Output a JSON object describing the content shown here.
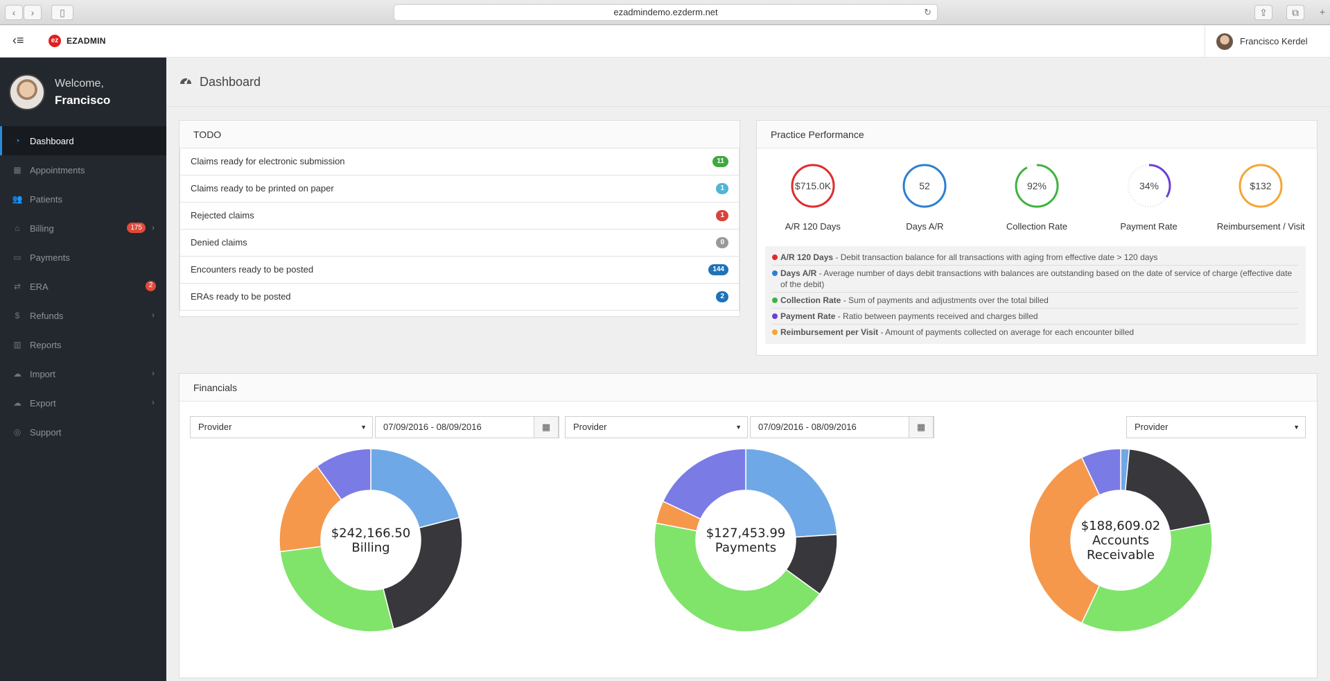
{
  "browser": {
    "url": "ezadmindemo.ezderm.net"
  },
  "header": {
    "logo_text": "EZADMIN",
    "user_name": "Francisco Kerdel"
  },
  "sidebar": {
    "welcome": "Welcome,",
    "user_first_name": "Francisco",
    "items": [
      {
        "label": "Dashboard",
        "icon": "dashboard-icon",
        "active": true
      },
      {
        "label": "Appointments",
        "icon": "calendar-icon"
      },
      {
        "label": "Patients",
        "icon": "users-icon"
      },
      {
        "label": "Billing",
        "icon": "bank-icon",
        "badge": "175",
        "chevron": true
      },
      {
        "label": "Payments",
        "icon": "money-icon"
      },
      {
        "label": "ERA",
        "icon": "exchange-icon",
        "badge": "2"
      },
      {
        "label": "Refunds",
        "icon": "dollar-icon",
        "chevron": true
      },
      {
        "label": "Reports",
        "icon": "bar-chart-icon"
      },
      {
        "label": "Import",
        "icon": "cloud-upload-icon",
        "chevron": true
      },
      {
        "label": "Export",
        "icon": "cloud-download-icon",
        "chevron": true
      },
      {
        "label": "Support",
        "icon": "life-ring-icon"
      }
    ]
  },
  "page": {
    "title": "Dashboard"
  },
  "todo": {
    "title": "TODO",
    "items": [
      {
        "label": "Claims ready for electronic submission",
        "count": "11",
        "color": "#3fa93f"
      },
      {
        "label": "Claims ready to be printed on paper",
        "count": "1",
        "color": "#4fb6d6"
      },
      {
        "label": "Rejected claims",
        "count": "1",
        "color": "#d9443a"
      },
      {
        "label": "Denied claims",
        "count": "0",
        "color": "#999999"
      },
      {
        "label": "Encounters ready to be posted",
        "count": "144",
        "color": "#1f73b7"
      },
      {
        "label": "ERAs ready to be posted",
        "count": "2",
        "color": "#1f73b7"
      }
    ]
  },
  "performance": {
    "title": "Practice Performance",
    "metrics": [
      {
        "value": "$715.0K",
        "label": "A/R 120 Days",
        "color": "#e02b2b",
        "fill": 1.0
      },
      {
        "value": "52",
        "label": "Days A/R",
        "color": "#2b80d0",
        "fill": 1.0
      },
      {
        "value": "92%",
        "label": "Collection Rate",
        "color": "#3db33d",
        "fill": 0.92
      },
      {
        "value": "34%",
        "label": "Payment Rate",
        "color": "#6a3fd6",
        "fill": 0.34
      },
      {
        "value": "$132",
        "label": "Reimbursement / Visit",
        "color": "#f5a534",
        "fill": 1.0
      }
    ],
    "legend": [
      {
        "term": "A/R 120 Days",
        "desc": " - Debit transaction balance for all transactions with aging from effective date > 120 days",
        "color": "#e02b2b"
      },
      {
        "term": "Days A/R",
        "desc": " - Average number of days debit transactions with balances are outstanding based on the date of service of charge (effective date of the debit)",
        "color": "#2b80d0"
      },
      {
        "term": "Collection Rate",
        "desc": " - Sum of payments and adjustments over the total billed",
        "color": "#3db33d"
      },
      {
        "term": "Payment Rate",
        "desc": " - Ratio between payments received and charges billed",
        "color": "#6a3fd6"
      },
      {
        "term": "Reimbursement per Visit",
        "desc": " - Amount of payments collected on average for each encounter billed",
        "color": "#f5a534"
      }
    ]
  },
  "financials": {
    "title": "Financials",
    "filters": [
      {
        "provider": "Provider",
        "date_range": "07/09/2016 - 08/09/2016"
      },
      {
        "provider": "Provider",
        "date_range": "07/09/2016 - 08/09/2016"
      },
      {
        "provider": "Provider"
      }
    ]
  },
  "chart_data": [
    {
      "type": "pie",
      "center_value": "$242,166.50",
      "center_label": "Billing",
      "slices": [
        {
          "value": 21,
          "color": "#6fa8e6"
        },
        {
          "value": 25,
          "color": "#37373c"
        },
        {
          "value": 27,
          "color": "#80e46b"
        },
        {
          "value": 17,
          "color": "#f5984c"
        },
        {
          "value": 10,
          "color": "#7b7be6"
        }
      ]
    },
    {
      "type": "pie",
      "center_value": "$127,453.99",
      "center_label": "Payments",
      "slices": [
        {
          "value": 24,
          "color": "#6fa8e6"
        },
        {
          "value": 11,
          "color": "#37373c"
        },
        {
          "value": 43,
          "color": "#80e46b"
        },
        {
          "value": 4,
          "color": "#f5984c"
        },
        {
          "value": 18,
          "color": "#7b7be6"
        }
      ]
    },
    {
      "type": "pie",
      "center_value": "$188,609.02",
      "center_label": "Accounts Receivable",
      "center_label_lines": [
        "Accounts",
        "Receivable"
      ],
      "slices": [
        {
          "value": 1.5,
          "color": "#6fa8e6"
        },
        {
          "value": 20.5,
          "color": "#37373c"
        },
        {
          "value": 35,
          "color": "#80e46b"
        },
        {
          "value": 36,
          "color": "#f5984c"
        },
        {
          "value": 7,
          "color": "#7b7be6"
        }
      ]
    }
  ]
}
